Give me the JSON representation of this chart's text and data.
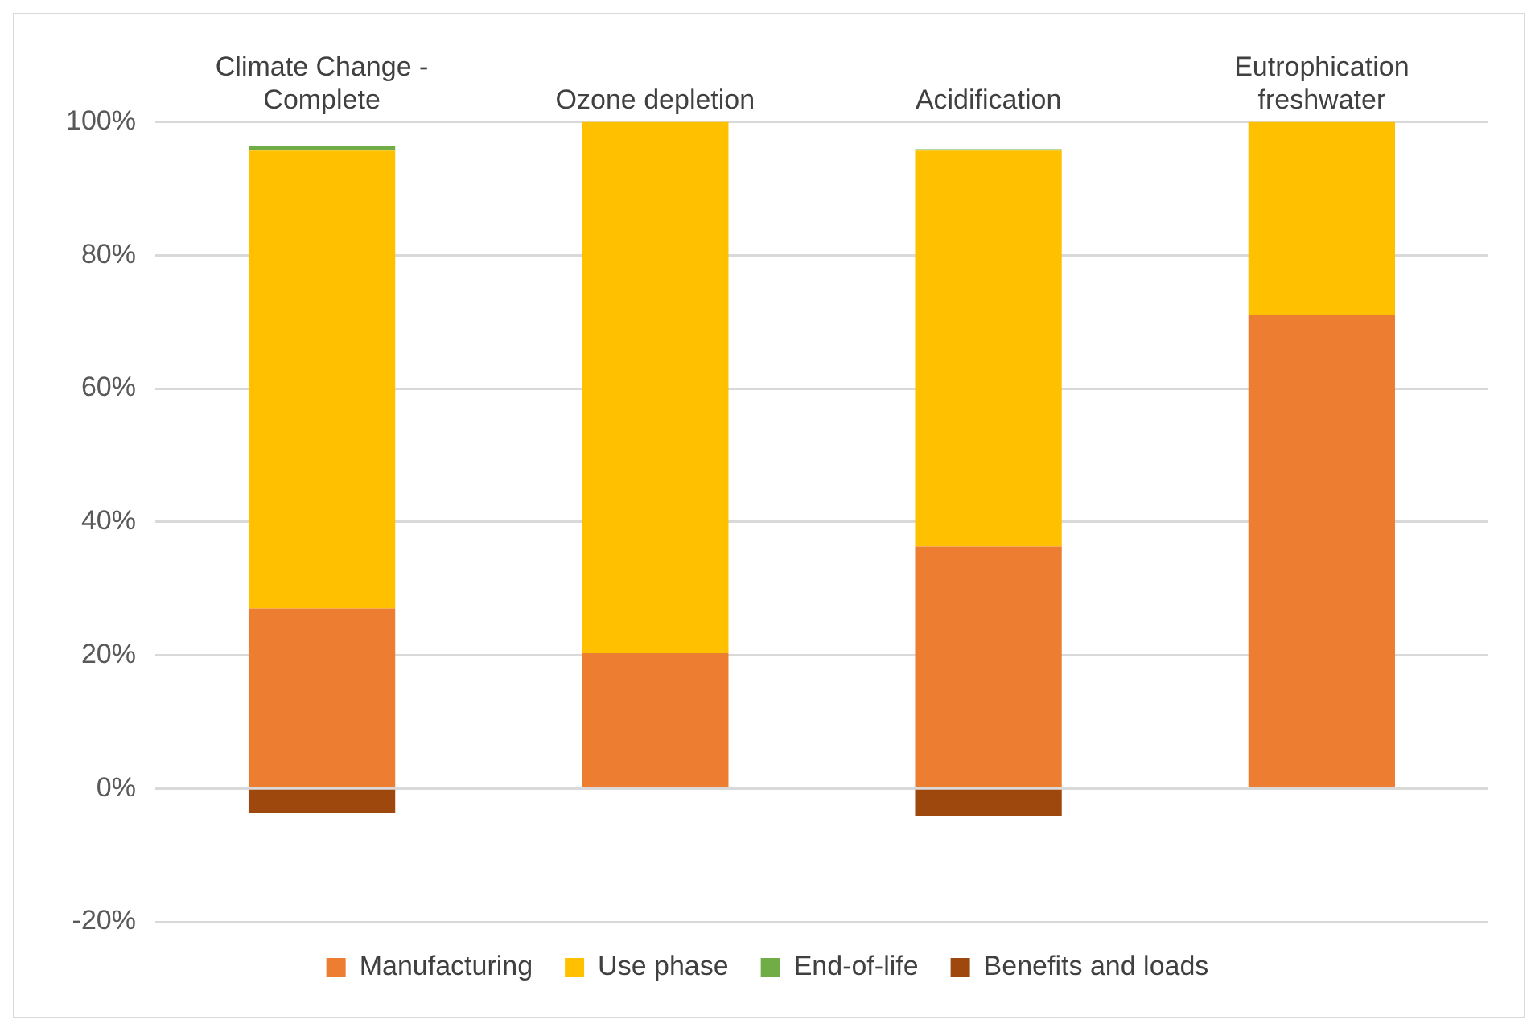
{
  "chart_data": {
    "type": "bar",
    "stacked": true,
    "categories": [
      "Climate Change - Complete",
      "Ozone depletion",
      "Acidification",
      "Eutrophication freshwater"
    ],
    "series": [
      {
        "name": "Manufacturing",
        "color": "#ed7d31",
        "values": [
          27,
          20.3,
          36.3,
          71
        ]
      },
      {
        "name": "Use phase",
        "color": "#ffc000",
        "values": [
          68.7,
          79.7,
          59.4,
          29
        ]
      },
      {
        "name": "End-of-life",
        "color": "#70ad47",
        "values": [
          0.7,
          0,
          0.2,
          0
        ]
      },
      {
        "name": "Benefits and loads",
        "color": "#9e480e",
        "values": [
          -3.7,
          0,
          -4.2,
          0
        ]
      }
    ],
    "ylim": [
      -20,
      100
    ],
    "yticks": [
      {
        "value": -20,
        "label": "-20%"
      },
      {
        "value": 0,
        "label": "0%"
      },
      {
        "value": 20,
        "label": "20%"
      },
      {
        "value": 40,
        "label": "40%"
      },
      {
        "value": 60,
        "label": "60%"
      },
      {
        "value": 80,
        "label": "80%"
      },
      {
        "value": 100,
        "label": "100%"
      }
    ],
    "grid": "y",
    "legend": "bottom"
  }
}
